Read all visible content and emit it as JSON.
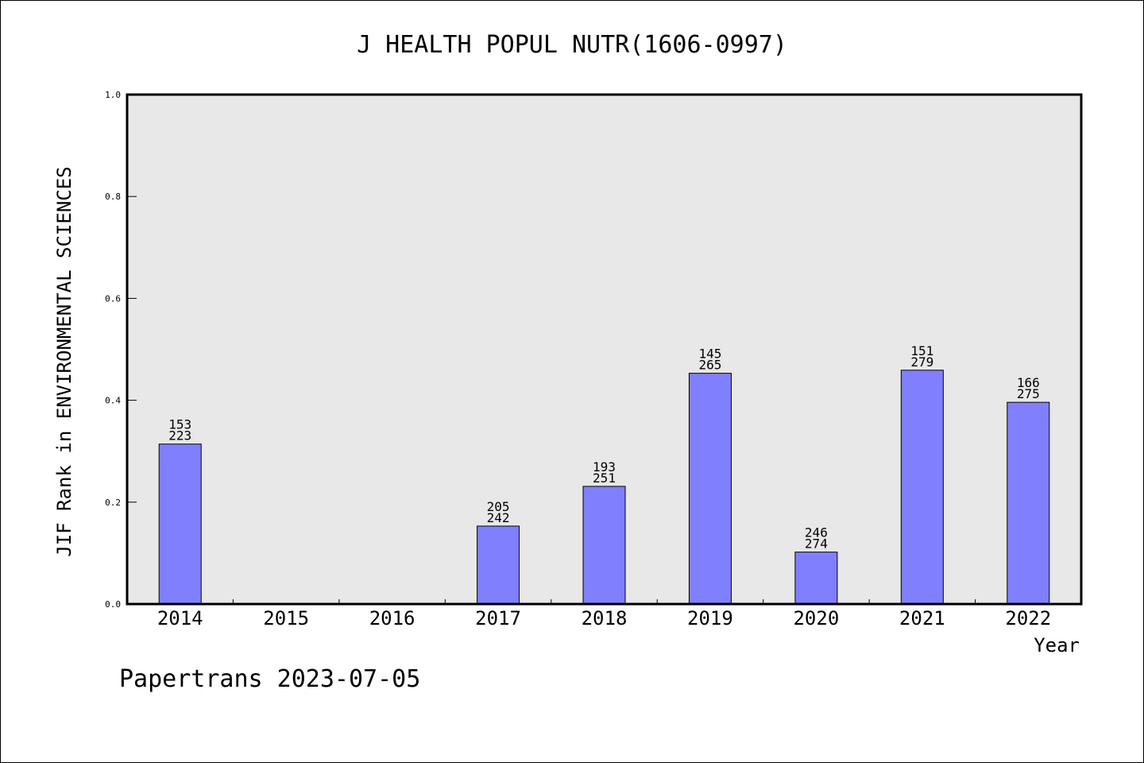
{
  "footer": {
    "text": "Papertrans 2023-07-05"
  },
  "chart_data": {
    "type": "bar",
    "title": "J HEALTH POPUL NUTR(1606-0997)",
    "xlabel": "Year",
    "ylabel": "JIF Rank in ENVIRONMENTAL SCIENCES",
    "ylim": [
      0,
      1.0
    ],
    "yticks": [
      "0.0",
      "0.2",
      "0.4",
      "0.6",
      "0.8",
      "1.0"
    ],
    "categories": [
      "2014",
      "2015",
      "2016",
      "2017",
      "2018",
      "2019",
      "2020",
      "2021",
      "2022"
    ],
    "values": [
      0.314,
      null,
      null,
      0.153,
      0.231,
      0.453,
      0.102,
      0.459,
      0.396
    ],
    "labels": [
      [
        "153",
        "223"
      ],
      null,
      null,
      [
        "205",
        "242"
      ],
      [
        "193",
        "251"
      ],
      [
        "145",
        "265"
      ],
      [
        "246",
        "274"
      ],
      [
        "151",
        "279"
      ],
      [
        "166",
        "275"
      ]
    ],
    "bar_color": "#8080ff",
    "plot_background": "#e8e8e8",
    "grid": false,
    "legend": "none"
  }
}
